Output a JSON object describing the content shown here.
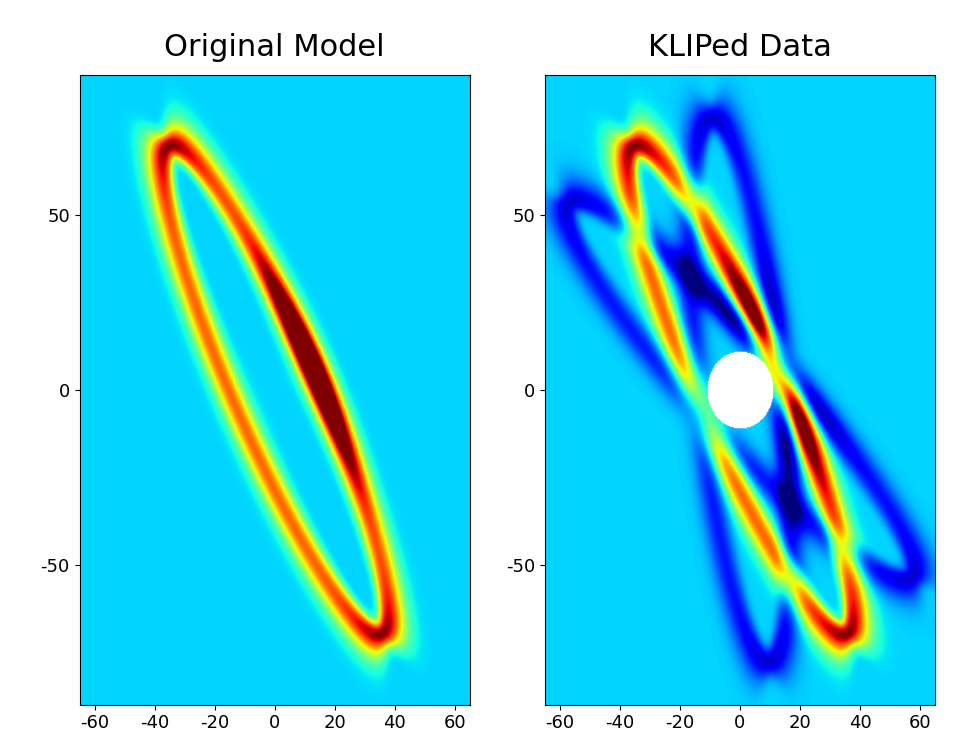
{
  "chart_data": [
    {
      "type": "heatmap",
      "title": "Original Model",
      "color": "jet",
      "xlim": [
        -65,
        65
      ],
      "ylim": [
        -90,
        90
      ],
      "xticks": [
        -60,
        -40,
        -20,
        0,
        20,
        40,
        60
      ],
      "yticks": [
        -50,
        0,
        50
      ],
      "color_range": [
        -0.5,
        1.0
      ],
      "ring": {
        "center": [
          0,
          0
        ],
        "semi_major": 78,
        "semi_minor": 14,
        "major_axis_angle_deg": 117,
        "ring_width": 3,
        "ring_brightness": 0.7,
        "ansae_brightness": 1.0,
        "front_arc_brightness": 1.0,
        "front_arc_extent": 20
      },
      "self_subtraction": null,
      "mask_radius": null
    },
    {
      "type": "heatmap",
      "title": "KLIPed Data",
      "color": "jet",
      "xlim": [
        -65,
        65
      ],
      "ylim": [
        -90,
        90
      ],
      "xticks": [
        -60,
        -40,
        -20,
        0,
        20,
        40,
        60
      ],
      "yticks": [
        -50,
        0,
        50
      ],
      "color_range": [
        -0.5,
        1.0
      ],
      "ring": {
        "center": [
          0,
          0
        ],
        "semi_major": 78,
        "semi_minor": 14,
        "major_axis_angle_deg": 117,
        "ring_width": 3,
        "ring_brightness": 0.7,
        "ansae_brightness": 1.0,
        "front_arc_brightness": 1.0,
        "front_arc_extent": 20
      },
      "self_subtraction": {
        "rotations_deg": [
          -20,
          20
        ],
        "fraction": 0.4
      },
      "mask_radius": 11
    }
  ]
}
